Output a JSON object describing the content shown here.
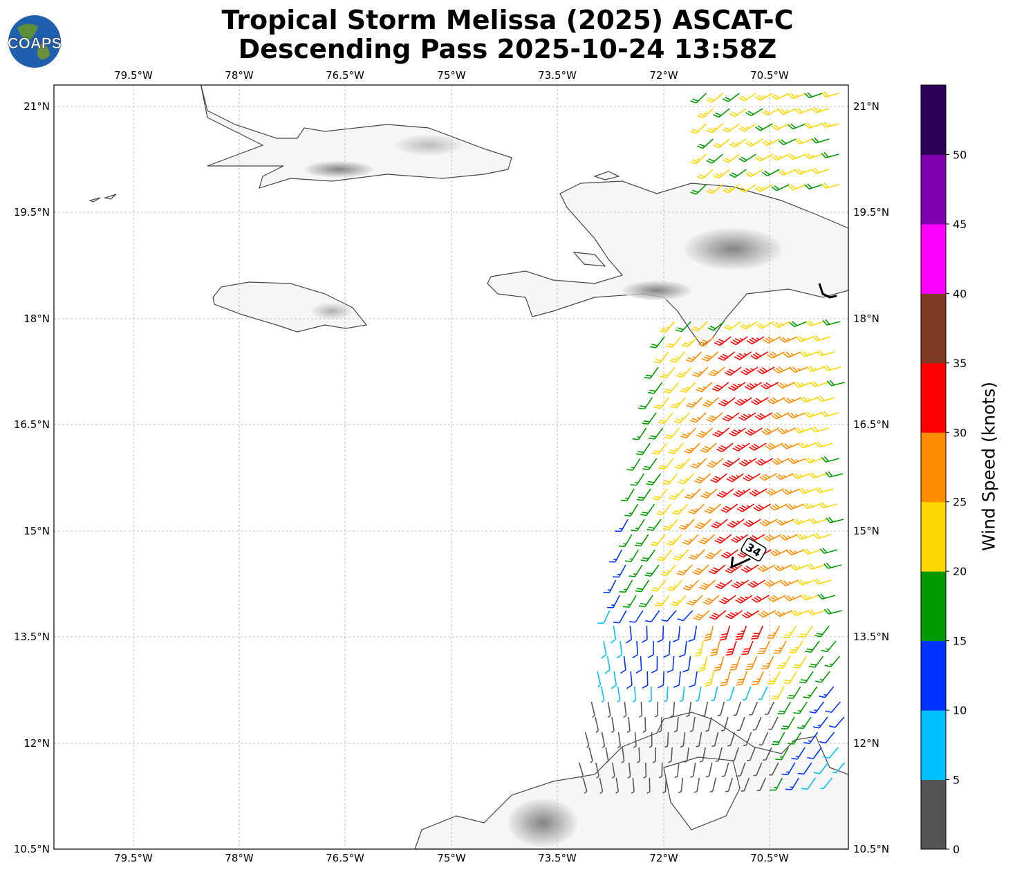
{
  "title_line1": "Tropical Storm Melissa (2025) ASCAT-C",
  "title_line2": "Descending Pass 2025-10-24 13:58Z",
  "logo_text": "COAPS",
  "lon_ticks": [
    "79.5°W",
    "78°W",
    "76.5°W",
    "75°W",
    "73.5°W",
    "72°W",
    "70.5°W"
  ],
  "lat_ticks": [
    "21°N",
    "19.5°N",
    "18°N",
    "16.5°N",
    "15°N",
    "13.5°N",
    "12°N",
    "10.5°N"
  ],
  "contour_label": "34",
  "colorbar": {
    "label": "Wind Speed (knots)",
    "ticks": [
      "0",
      "5",
      "10",
      "15",
      "20",
      "25",
      "30",
      "35",
      "40",
      "45",
      "50"
    ],
    "bins": [
      {
        "range": "0-5",
        "color": "#555555"
      },
      {
        "range": "5-10",
        "color": "#00bfff"
      },
      {
        "range": "10-15",
        "color": "#0033ff"
      },
      {
        "range": "15-20",
        "color": "#009900"
      },
      {
        "range": "20-25",
        "color": "#ffd700"
      },
      {
        "range": "25-30",
        "color": "#ff8c00"
      },
      {
        "range": "30-35",
        "color": "#ff0000"
      },
      {
        "range": "35-40",
        "color": "#7f3b26"
      },
      {
        "range": "40-45",
        "color": "#ff00ff"
      },
      {
        "range": "45-50",
        "color": "#8000b0"
      },
      {
        "range": "50+",
        "color": "#2d0057"
      }
    ]
  }
}
